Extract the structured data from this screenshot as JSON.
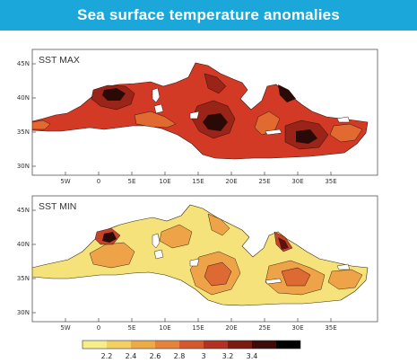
{
  "title": "Sea surface temperature anomalies",
  "colors": {
    "title_bar": "#1ba7d9",
    "scale": [
      "#f6ee8a",
      "#f3d060",
      "#eeab45",
      "#e5833a",
      "#d5572e",
      "#b23123",
      "#7a1a13",
      "#3e0b08",
      "#000000"
    ]
  },
  "panels": [
    {
      "label": "SST MAX",
      "lat_ticks": [
        "45N",
        "40N",
        "35N",
        "30N"
      ],
      "lon_ticks": [
        "5W",
        "0",
        "5E",
        "10E",
        "15E",
        "20E",
        "25E",
        "30E",
        "35E"
      ]
    },
    {
      "label": "SST MIN",
      "lat_ticks": [
        "45N",
        "40N",
        "35N",
        "30N"
      ],
      "lon_ticks": [
        "5W",
        "0",
        "5E",
        "10E",
        "15E",
        "20E",
        "25E",
        "30E",
        "35E"
      ]
    }
  ],
  "colorbar": {
    "labels": [
      "2.2",
      "2.4",
      "2.6",
      "2.8",
      "3",
      "3.2",
      "3.4"
    ]
  }
}
